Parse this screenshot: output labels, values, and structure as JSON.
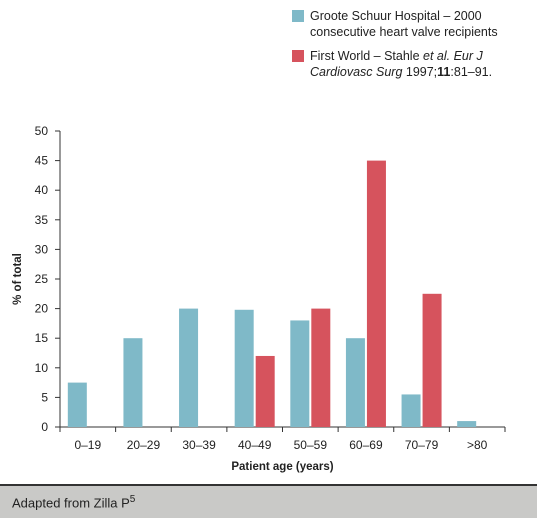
{
  "chart_data": {
    "type": "bar",
    "categories": [
      "0–19",
      "20–29",
      "30–39",
      "40–49",
      "50–59",
      "60–69",
      "70–79",
      ">80"
    ],
    "series": [
      {
        "name": "Groote Schuur Hospital – 2000 consecutive heart valve recipients",
        "color": "#7fb9c8",
        "values": [
          7.5,
          15,
          20,
          19.8,
          18,
          15,
          5.5,
          1
        ]
      },
      {
        "name": "First World – Stahle et al. Eur J Cardiovasc Surg 1997;11:81–91.",
        "color": "#d6535d",
        "values": [
          0,
          0,
          0,
          12,
          20,
          45,
          22.5,
          0
        ]
      }
    ],
    "title": "",
    "xlabel": "Patient age (years)",
    "ylabel": "% of total",
    "ylim": [
      0,
      50
    ],
    "yticks": [
      0,
      5,
      10,
      15,
      20,
      25,
      30,
      35,
      40,
      45,
      50
    ],
    "grid": false,
    "legend_placement": "top-right"
  },
  "legend": {
    "item1_line1": "Groote Schuur Hospital – 2000",
    "item1_line2": "consecutive heart valve recipients",
    "item2_prefix": "First World – Stahle ",
    "item2_etal": "et al.",
    "item2_journal_a": " Eur J",
    "item2_journal_b": "Cardiovasc Surg",
    "item2_year": " 1997;",
    "item2_volume": "11",
    "item2_pages": ":81–91."
  },
  "footer": {
    "text": "Adapted from Zilla P",
    "sup": "5"
  }
}
